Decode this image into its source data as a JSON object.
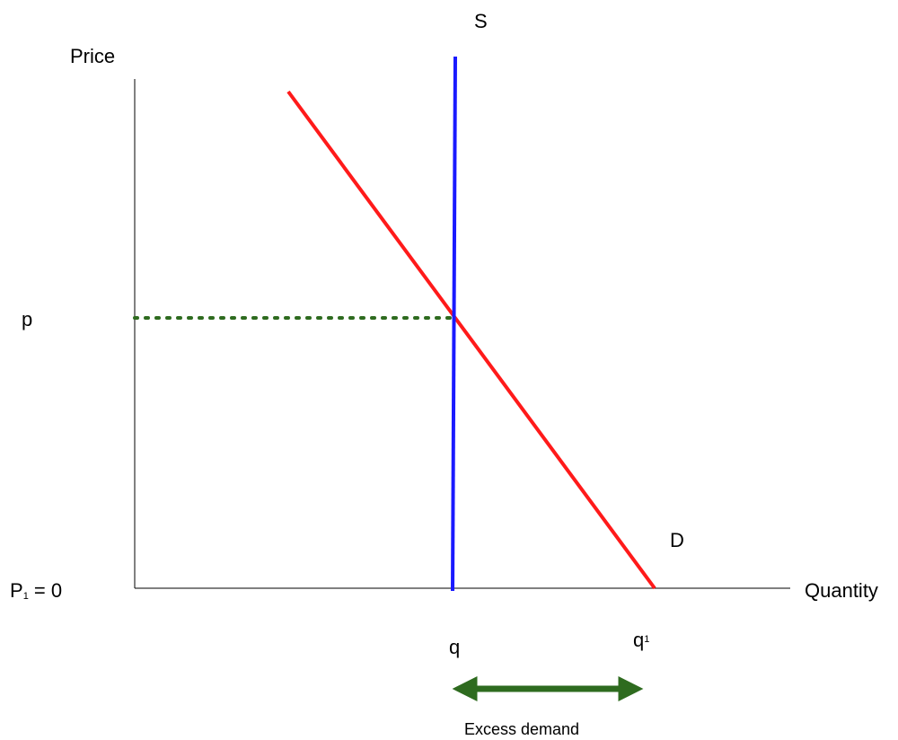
{
  "labels": {
    "y_axis": "Price",
    "x_axis": "Quantity",
    "supply_curve": "S",
    "demand_curve": "D",
    "price_p": "p",
    "price_zero_main": "P",
    "price_zero_sub": "1",
    "price_zero_rest": " = 0",
    "quantity_q": "q",
    "quantity_q1_main": "q",
    "quantity_q1_sub": "1",
    "excess_demand": "Excess demand"
  },
  "colors": {
    "axis": "#000000",
    "supply": "#1a1aff",
    "demand": "#ff1a1a",
    "guide": "#2e6b1f",
    "arrow": "#2e6b1f"
  }
}
